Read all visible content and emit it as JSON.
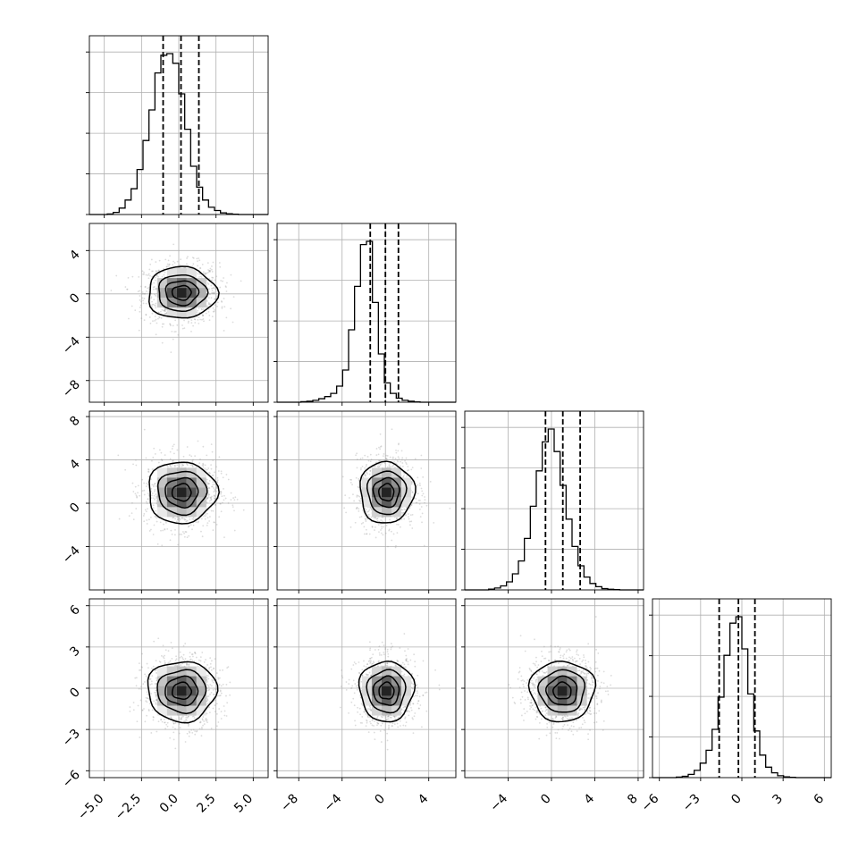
{
  "chart_data": {
    "type": "corner",
    "title": "",
    "parameters": 4,
    "grid": true,
    "histogram_ticks": {
      "0": [
        -5,
        -2.5,
        0,
        2.5,
        5
      ],
      "1": [
        -8,
        -4,
        0,
        4
      ],
      "2": [
        -4,
        0,
        4,
        8
      ],
      "3": [
        -6,
        -3,
        0,
        3,
        6
      ]
    },
    "tick_labels": {
      "0": [
        "−5.0",
        "−2.5",
        "0.0",
        "2.5",
        "5.0"
      ],
      "1": [
        "−8",
        "−4",
        "0",
        "4"
      ],
      "2": [
        "−4",
        "0",
        "4",
        "8"
      ],
      "3": [
        "−6",
        "−3",
        "0",
        "3",
        "6"
      ]
    },
    "axis_ranges": {
      "0": [
        -6,
        6
      ],
      "1": [
        -10,
        6.5
      ],
      "2": [
        -8,
        8.5
      ],
      "3": [
        -6.5,
        6.5
      ]
    },
    "quantiles": {
      "0": [
        -1.05,
        0.15,
        1.35
      ],
      "1": [
        -1.4,
        0.0,
        1.2
      ],
      "2": [
        -0.55,
        1.05,
        2.65
      ],
      "3": [
        -1.65,
        -0.25,
        0.95
      ]
    },
    "means": {
      "0": 0.2,
      "1": 0.1,
      "2": 1.0,
      "3": -0.2
    },
    "sds": {
      "0": 1.2,
      "1": 1.3,
      "2": 1.55,
      "3": 1.2
    },
    "histograms": {
      "0": [
        0,
        0,
        0,
        0.003,
        0.013,
        0.04,
        0.09,
        0.16,
        0.28,
        0.46,
        0.65,
        0.88,
        0.99,
        1.0,
        0.94,
        0.75,
        0.53,
        0.3,
        0.17,
        0.09,
        0.045,
        0.025,
        0.01,
        0.005,
        0.002,
        0,
        0,
        0,
        0,
        0
      ],
      "1": [
        0,
        0,
        0,
        0,
        0.003,
        0.006,
        0.012,
        0.022,
        0.035,
        0.055,
        0.1,
        0.2,
        0.45,
        0.72,
        0.98,
        1.0,
        0.62,
        0.3,
        0.12,
        0.055,
        0.025,
        0.012,
        0.006,
        0.002,
        0,
        0,
        0,
        0,
        0,
        0
      ],
      "2": [
        0,
        0,
        0,
        0,
        0.005,
        0.012,
        0.025,
        0.05,
        0.1,
        0.18,
        0.32,
        0.52,
        0.74,
        0.92,
        1.0,
        0.86,
        0.65,
        0.44,
        0.27,
        0.15,
        0.08,
        0.04,
        0.02,
        0.008,
        0.004,
        0.002,
        0,
        0,
        0,
        0
      ],
      "3": [
        0,
        0,
        0,
        0,
        0.003,
        0.008,
        0.02,
        0.045,
        0.09,
        0.17,
        0.3,
        0.5,
        0.76,
        0.96,
        1.0,
        0.8,
        0.52,
        0.29,
        0.14,
        0.065,
        0.03,
        0.012,
        0.005,
        0.002,
        0,
        0,
        0,
        0,
        0,
        0
      ]
    },
    "panels": [
      {
        "row": 0,
        "col": 0,
        "kind": "histogram"
      },
      {
        "row": 1,
        "col": 0,
        "kind": "scatter-contour"
      },
      {
        "row": 1,
        "col": 1,
        "kind": "histogram"
      },
      {
        "row": 2,
        "col": 0,
        "kind": "scatter-contour"
      },
      {
        "row": 2,
        "col": 1,
        "kind": "scatter-contour"
      },
      {
        "row": 2,
        "col": 2,
        "kind": "histogram"
      },
      {
        "row": 3,
        "col": 0,
        "kind": "scatter-contour"
      },
      {
        "row": 3,
        "col": 1,
        "kind": "scatter-contour"
      },
      {
        "row": 3,
        "col": 2,
        "kind": "scatter-contour"
      },
      {
        "row": 3,
        "col": 3,
        "kind": "histogram"
      }
    ],
    "contour_levels": [
      0.12,
      0.35,
      0.62,
      0.85
    ],
    "colors": {
      "line": "#000000",
      "grid": "#b0b0b0",
      "scatter": "#9a9a9a",
      "quantile": "#000000"
    }
  }
}
